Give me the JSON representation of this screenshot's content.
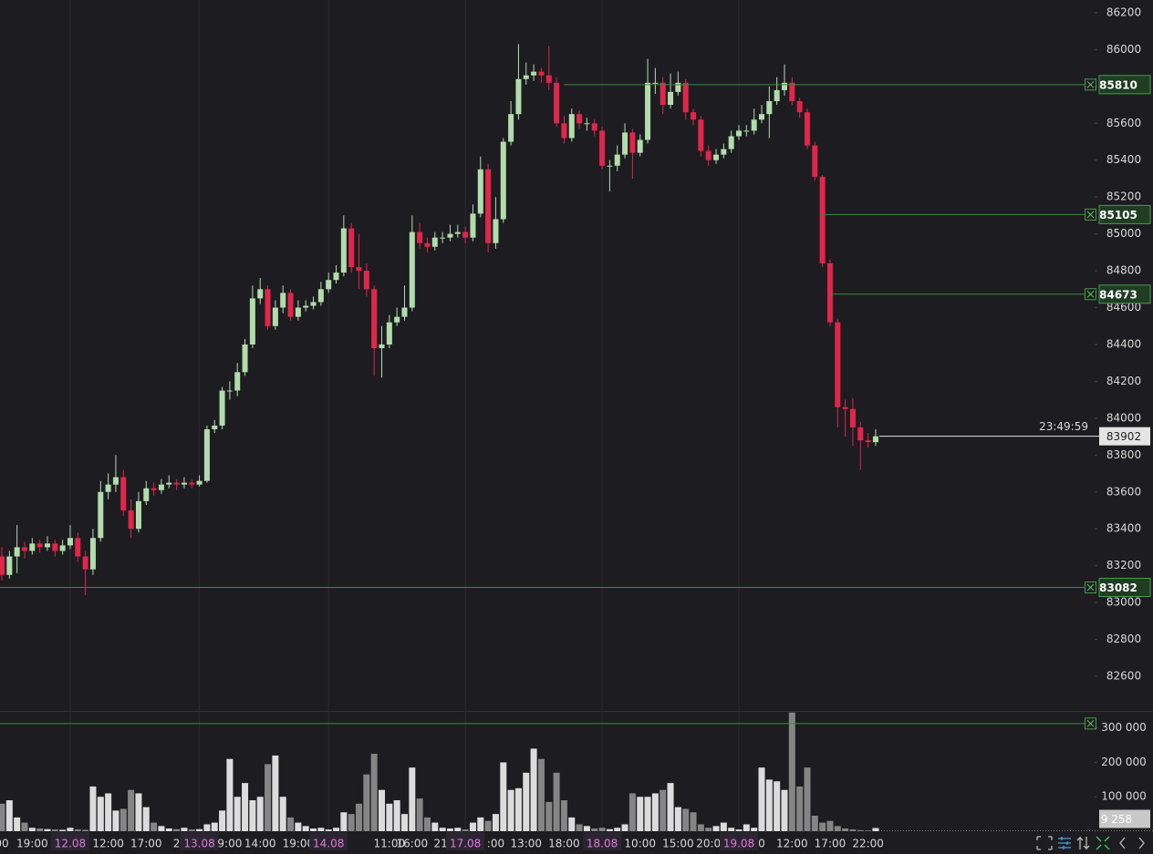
{
  "chart_data": {
    "type": "candlestick",
    "categories": [
      "00",
      null,
      null,
      null,
      "19:00",
      null,
      null,
      null,
      null,
      "12.08",
      null,
      null,
      null,
      null,
      "12:00",
      null,
      null,
      null,
      null,
      "17:00",
      null,
      null,
      null,
      "2",
      null,
      null,
      "13.08",
      null,
      null,
      null,
      "9:00",
      null,
      null,
      null,
      "14:00",
      null,
      null,
      null,
      null,
      "19:00",
      null,
      null,
      null,
      "14.08",
      null,
      null,
      null,
      null,
      null,
      null,
      null,
      "11:00",
      null,
      null,
      "16:00",
      null,
      null,
      null,
      "21:",
      null,
      null,
      "17.08",
      null,
      null,
      null,
      ":00",
      null,
      null,
      null,
      "13:00",
      null,
      null,
      null,
      null,
      "18:00",
      null,
      null,
      null,
      null,
      "18.08",
      null,
      null,
      null,
      null,
      "10:00",
      null,
      null,
      null,
      null,
      "15:00",
      null,
      null,
      null,
      "20:0",
      null,
      null,
      null,
      "19.08",
      null,
      null,
      "0",
      null,
      null,
      null,
      "12:00",
      null,
      null,
      null,
      null,
      "17:00",
      null,
      null,
      null,
      null,
      "22:00",
      null
    ],
    "open": [
      83250,
      83150,
      83250,
      83300,
      83280,
      83320,
      83300,
      83320,
      83280,
      83310,
      83350,
      83250,
      83180,
      83350,
      83600,
      83640,
      83680,
      83500,
      83400,
      83550,
      83620,
      83610,
      83640,
      83650,
      83640,
      83650,
      83640,
      83660,
      83940,
      83960,
      84150,
      84150,
      84250,
      84400,
      84650,
      84700,
      84500,
      84600,
      84680,
      84550,
      84600,
      84610,
      84630,
      84700,
      84750,
      84790,
      85030,
      84820,
      84800,
      84700,
      84380,
      84400,
      84520,
      84550,
      84600,
      85010,
      84950,
      84930,
      84980,
      84980,
      85000,
      85010,
      84980,
      85110,
      85350,
      84950,
      85080,
      85500,
      85650,
      85840,
      85860,
      85880,
      85860,
      85820,
      85600,
      85520,
      85650,
      85600,
      85600,
      85560,
      85370,
      85370,
      85430,
      85550,
      85440,
      85510,
      85820,
      85820,
      85700,
      85770,
      85820,
      85660,
      85620,
      85450,
      85400,
      85430,
      85460,
      85530,
      85560,
      85560,
      85620,
      85650,
      85720,
      85780,
      85820,
      85720,
      85660,
      85480,
      85310,
      84840,
      84520,
      84060,
      84050,
      83950,
      83880,
      83870
    ],
    "high": [
      83300,
      83280,
      83420,
      83330,
      83350,
      83340,
      83360,
      83340,
      83340,
      83420,
      83380,
      83280,
      83400,
      83660,
      83700,
      83800,
      83720,
      83560,
      83600,
      83660,
      83650,
      83670,
      83690,
      83670,
      83680,
      83670,
      83690,
      83960,
      83990,
      84170,
      84200,
      84300,
      84430,
      84720,
      84760,
      84720,
      84640,
      84720,
      84700,
      84640,
      84640,
      84660,
      84740,
      84790,
      84830,
      85100,
      85060,
      85000,
      84840,
      84720,
      84500,
      84560,
      84600,
      84720,
      85100,
      85060,
      84980,
      85010,
      85010,
      85050,
      85050,
      85040,
      85160,
      85420,
      85380,
      85200,
      85520,
      85720,
      86030,
      85930,
      85920,
      85900,
      86020,
      85850,
      85640,
      85680,
      85670,
      85630,
      85620,
      85580,
      85400,
      85480,
      85600,
      85570,
      85540,
      85950,
      85900,
      85850,
      85870,
      85880,
      85840,
      85680,
      85640,
      85480,
      85460,
      85490,
      85560,
      85590,
      85590,
      85680,
      85700,
      85800,
      85850,
      85920,
      85850,
      85740,
      85680,
      85500,
      85320,
      84860,
      84540,
      84100,
      84110,
      83980,
      83920,
      83940
    ],
    "low": [
      83120,
      83130,
      83160,
      83240,
      83260,
      83270,
      83280,
      83250,
      83260,
      83290,
      83220,
      83040,
      83150,
      83330,
      83560,
      83600,
      83470,
      83350,
      83380,
      83530,
      83580,
      83590,
      83620,
      83610,
      83620,
      83620,
      83630,
      83650,
      83920,
      83940,
      84100,
      84120,
      84230,
      84380,
      84620,
      84480,
      84480,
      84570,
      84530,
      84530,
      84580,
      84590,
      84610,
      84680,
      84730,
      84770,
      84790,
      84700,
      84660,
      84230,
      84220,
      84380,
      84500,
      84530,
      84580,
      84920,
      84900,
      84910,
      84950,
      84960,
      84980,
      84950,
      84960,
      85090,
      84900,
      84920,
      85060,
      85480,
      85620,
      85810,
      85830,
      85820,
      85780,
      85580,
      85490,
      85500,
      85570,
      85560,
      85530,
      85350,
      85230,
      85340,
      85410,
      85300,
      85420,
      85490,
      85760,
      85650,
      85680,
      85750,
      85620,
      85590,
      85420,
      85370,
      85380,
      85410,
      85440,
      85510,
      85530,
      85540,
      85600,
      85520,
      85700,
      85750,
      85700,
      85630,
      85460,
      85290,
      84820,
      84500,
      83950,
      83900,
      83850,
      83720,
      83840,
      83850
    ],
    "close": [
      83150,
      83250,
      83300,
      83280,
      83320,
      83300,
      83320,
      83280,
      83310,
      83350,
      83250,
      83180,
      83350,
      83600,
      83640,
      83680,
      83500,
      83400,
      83550,
      83620,
      83610,
      83640,
      83650,
      83640,
      83650,
      83640,
      83660,
      83940,
      83960,
      84150,
      84150,
      84250,
      84400,
      84650,
      84700,
      84500,
      84600,
      84680,
      84550,
      84600,
      84610,
      84630,
      84700,
      84750,
      84790,
      85030,
      84820,
      84800,
      84700,
      84380,
      84400,
      84520,
      84550,
      84600,
      85010,
      84950,
      84930,
      84980,
      84980,
      85000,
      85010,
      84980,
      85110,
      85350,
      84950,
      85080,
      85500,
      85650,
      85840,
      85860,
      85880,
      85860,
      85820,
      85600,
      85520,
      85650,
      85600,
      85600,
      85560,
      85370,
      85370,
      85430,
      85550,
      85440,
      85510,
      85820,
      85820,
      85700,
      85770,
      85820,
      85660,
      85620,
      85450,
      85400,
      85430,
      85460,
      85530,
      85560,
      85560,
      85620,
      85650,
      85720,
      85780,
      85820,
      85720,
      85660,
      85480,
      85310,
      84840,
      84520,
      84060,
      84050,
      83950,
      83880,
      83870,
      83902
    ],
    "up_color": "#b3dcac",
    "down_color": "#e0264a",
    "ylim": [
      82412,
      86269
    ],
    "yticks": [
      82600,
      82800,
      83000,
      83200,
      83400,
      83600,
      83800,
      84000,
      84200,
      84400,
      84600,
      84800,
      85000,
      85200,
      85400,
      85600,
      85800,
      86000,
      86200
    ],
    "alerts": [
      85810,
      85105,
      84673,
      83082
    ],
    "countdown": "23:49:59",
    "volume": {
      "values": [
        80000,
        90000,
        40000,
        25000,
        10000,
        8000,
        6000,
        5000,
        4000,
        10000,
        5000,
        4000,
        130000,
        100000,
        110000,
        60000,
        65000,
        120000,
        110000,
        70000,
        25000,
        15000,
        8000,
        6000,
        10000,
        5000,
        6000,
        20000,
        25000,
        60000,
        210000,
        100000,
        140000,
        90000,
        100000,
        195000,
        220000,
        100000,
        40000,
        25000,
        15000,
        8000,
        10000,
        5000,
        10000,
        55000,
        50000,
        80000,
        165000,
        225000,
        120000,
        80000,
        90000,
        50000,
        185000,
        95000,
        40000,
        25000,
        10000,
        8000,
        10000,
        5000,
        25000,
        40000,
        30000,
        50000,
        200000,
        120000,
        125000,
        170000,
        240000,
        210000,
        85000,
        170000,
        90000,
        40000,
        20000,
        15000,
        8000,
        10000,
        6000,
        10000,
        20000,
        110000,
        100000,
        100000,
        110000,
        120000,
        140000,
        70000,
        65000,
        55000,
        20000,
        10000,
        15000,
        25000,
        10000,
        5000,
        20000,
        10000,
        185000,
        150000,
        145000,
        120000,
        345000,
        130000,
        185000,
        45000,
        25000,
        30000,
        15000,
        8000,
        5000,
        3000,
        2000,
        9258
      ],
      "up_color": "#dcdcdc",
      "down_color": "#858585",
      "ylim": [
        0,
        347000
      ],
      "yticks": [
        {
          "value": 100000,
          "label": "100 000"
        },
        {
          "value": 200000,
          "label": "200 000"
        },
        {
          "value": 300000,
          "label": "300 000"
        }
      ],
      "last_label": "9 258",
      "alerts": [
        313000
      ]
    }
  }
}
